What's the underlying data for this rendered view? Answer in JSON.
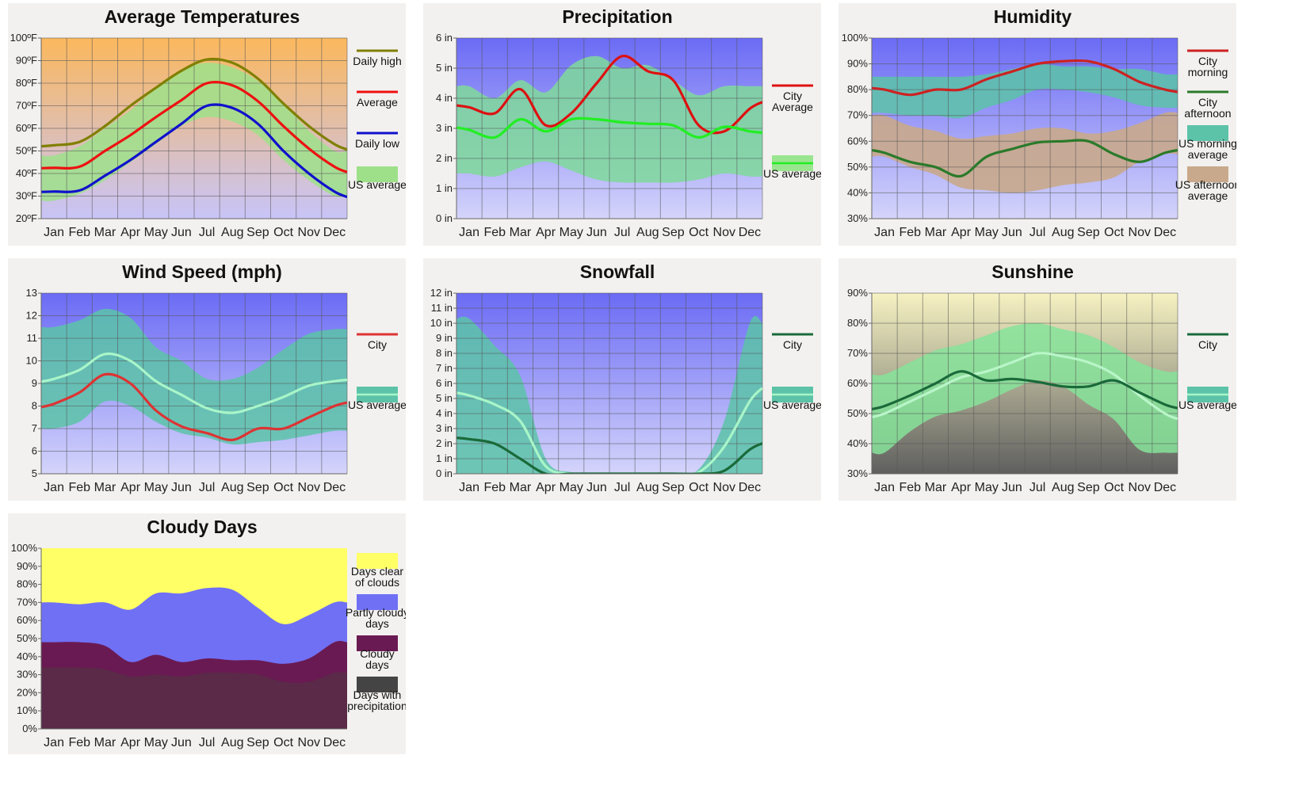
{
  "months": [
    "Jan",
    "Feb",
    "Mar",
    "Apr",
    "May",
    "Jun",
    "Jul",
    "Aug",
    "Sep",
    "Oct",
    "Nov",
    "Dec"
  ],
  "chart_data": [
    {
      "id": "temp",
      "type": "line",
      "title": "Average Temperatures",
      "ylim": [
        20,
        100
      ],
      "yticks": [
        20,
        30,
        40,
        50,
        60,
        70,
        80,
        90,
        100
      ],
      "ytick_labels": [
        "20ºF",
        "30ºF",
        "40ºF",
        "50ºF",
        "60ºF",
        "70ºF",
        "80ºF",
        "90ºF",
        "100ºF"
      ],
      "background": {
        "top": "#fbb85d",
        "bottom": "#c8c4f8"
      },
      "bands": [
        {
          "name": "US average",
          "lower": [
            28,
            31,
            37,
            45,
            53,
            61,
            65,
            63,
            57,
            46,
            37,
            30
          ],
          "upper": [
            48,
            52,
            60,
            68,
            78,
            86,
            89,
            87,
            81,
            71,
            59,
            50
          ],
          "color": "#9ee08a",
          "opacity": 0.85
        }
      ],
      "series": [
        {
          "name": "Daily high",
          "values": [
            52.5,
            54,
            61,
            70,
            78,
            85.5,
            90.5,
            89,
            82,
            71,
            61,
            53
          ],
          "color": "#808000"
        },
        {
          "name": "Average",
          "values": [
            42.5,
            43,
            50,
            57,
            65,
            72.5,
            80,
            79,
            72,
            61,
            51,
            43
          ],
          "color": "#ee1111"
        },
        {
          "name": "Daily low",
          "values": [
            32,
            32.5,
            39,
            46,
            54,
            62,
            70,
            69,
            62,
            50,
            40,
            32
          ],
          "color": "#1111cc"
        }
      ],
      "legend": [
        {
          "type": "line",
          "color": "#808000",
          "label": [
            "Daily high"
          ]
        },
        {
          "type": "line",
          "color": "#ee1111",
          "label": [
            "Average"
          ]
        },
        {
          "type": "line",
          "color": "#1111cc",
          "label": [
            "Daily low"
          ]
        },
        {
          "type": "box",
          "color": "#9ee08a",
          "label": [
            "US average"
          ]
        }
      ]
    },
    {
      "id": "precip",
      "type": "line",
      "title": "Precipitation",
      "ylim": [
        0,
        6
      ],
      "yticks": [
        0,
        1,
        2,
        3,
        4,
        5,
        6
      ],
      "ytick_labels": [
        "0 in",
        "1 in",
        "2 in",
        "3 in",
        "4 in",
        "5 in",
        "6 in"
      ],
      "background": {
        "top": "#6b6bf5",
        "bottom": "#d4d4fb"
      },
      "bands": [
        {
          "name": "US average",
          "lower": [
            1.5,
            1.4,
            1.7,
            1.9,
            1.6,
            1.3,
            1.2,
            1.2,
            1.2,
            1.3,
            1.5,
            1.4
          ],
          "upper": [
            4.4,
            4.0,
            4.6,
            4.2,
            5.1,
            5.4,
            5.0,
            5.1,
            4.6,
            4.1,
            4.4,
            4.4
          ],
          "color": "#7fd99b",
          "opacity": 0.85
        }
      ],
      "series": [
        {
          "name": "City Average",
          "values": [
            3.7,
            3.5,
            4.3,
            3.1,
            3.5,
            4.5,
            5.4,
            4.9,
            4.6,
            3.1,
            2.9,
            3.65
          ],
          "color": "#dd1111"
        },
        {
          "name": "US average",
          "values": [
            2.95,
            2.7,
            3.3,
            2.9,
            3.3,
            3.3,
            3.2,
            3.15,
            3.1,
            2.7,
            3.05,
            2.9
          ],
          "color": "#22ee22"
        }
      ],
      "legend": [
        {
          "type": "line",
          "color": "#dd1111",
          "label": [
            "City",
            "Average"
          ]
        },
        {
          "type": "box-line",
          "color": "#9ae58f",
          "line": "#22ee22",
          "label": [
            "US average"
          ]
        }
      ]
    },
    {
      "id": "humid",
      "type": "line",
      "title": "Humidity",
      "ylim": [
        30,
        100
      ],
      "yticks": [
        30,
        40,
        50,
        60,
        70,
        80,
        90,
        100
      ],
      "ytick_labels": [
        "30%",
        "40%",
        "50%",
        "60%",
        "70%",
        "80%",
        "90%",
        "100%"
      ],
      "background": {
        "top": "#6b6bf5",
        "bottom": "#d4d4fb"
      },
      "bands": [
        {
          "name": "US afternoon average",
          "lower": [
            54,
            50,
            47,
            42,
            41,
            40,
            41,
            43,
            44,
            46,
            52,
            55
          ],
          "upper": [
            70,
            66,
            64,
            61,
            62,
            63,
            65,
            65,
            63,
            64,
            67,
            71
          ],
          "color": "#c9a98b",
          "opacity": 0.9
        },
        {
          "name": "US morning average",
          "lower": [
            71,
            70,
            70,
            69,
            73,
            76,
            80,
            80,
            79,
            77,
            74,
            73
          ],
          "upper": [
            85,
            85,
            85,
            85,
            86,
            88,
            90,
            89,
            89,
            88,
            88,
            86
          ],
          "color": "#5cc3a8",
          "opacity": 0.85
        }
      ],
      "series": [
        {
          "name": "City morning",
          "values": [
            80,
            78,
            80,
            80,
            84,
            87,
            90,
            91,
            91,
            88,
            83,
            80
          ],
          "color": "#cc2222"
        },
        {
          "name": "City afternoon",
          "values": [
            55.5,
            52,
            50,
            46.5,
            54,
            57,
            59.5,
            60,
            60,
            55,
            52,
            55.5
          ],
          "color": "#2a7a2a"
        }
      ],
      "legend": [
        {
          "type": "line",
          "color": "#cc2222",
          "label": [
            "City",
            "morning"
          ]
        },
        {
          "type": "line",
          "color": "#2a7a2a",
          "label": [
            "City",
            "afternoon"
          ]
        },
        {
          "type": "box",
          "color": "#5cc3a8",
          "label": [
            "US morning",
            "average"
          ]
        },
        {
          "type": "box",
          "color": "#c9a98b",
          "label": [
            "US afternoon",
            "average"
          ]
        }
      ]
    },
    {
      "id": "wind",
      "type": "line",
      "title": "Wind Speed (mph)",
      "ylim": [
        5,
        13
      ],
      "yticks": [
        5,
        6,
        7,
        8,
        9,
        10,
        11,
        12,
        13
      ],
      "ytick_labels": [
        "5",
        "6",
        "7",
        "8",
        "9",
        "10",
        "11",
        "12",
        "13"
      ],
      "background": {
        "top": "#6b6bf5",
        "bottom": "#d4d4fb"
      },
      "bands": [
        {
          "name": "US average",
          "lower": [
            7.0,
            7.3,
            8.2,
            8.0,
            7.3,
            6.8,
            6.6,
            6.3,
            6.4,
            6.5,
            6.7,
            6.9
          ],
          "upper": [
            11.5,
            11.8,
            12.3,
            11.9,
            10.6,
            10.0,
            9.2,
            9.2,
            9.7,
            10.5,
            11.2,
            11.4
          ],
          "color": "#5cc3a8",
          "opacity": 0.85
        }
      ],
      "series": [
        {
          "name": "US average",
          "values": [
            9.2,
            9.6,
            10.3,
            10.0,
            9.1,
            8.5,
            7.9,
            7.7,
            8.0,
            8.4,
            8.9,
            9.1
          ],
          "color": "#a8f5c8"
        },
        {
          "name": "City",
          "values": [
            8.1,
            8.6,
            9.4,
            9.0,
            7.8,
            7.1,
            6.8,
            6.5,
            7.0,
            7.0,
            7.5,
            8.0
          ],
          "color": "#dd3333"
        }
      ],
      "legend": [
        {
          "type": "line",
          "color": "#dd3333",
          "label": [
            "City"
          ]
        },
        {
          "type": "box-line",
          "color": "#5cc3a8",
          "line": "#a8f5c8",
          "label": [
            "US average"
          ]
        }
      ]
    },
    {
      "id": "snow",
      "type": "line",
      "title": "Snowfall",
      "ylim": [
        0,
        12
      ],
      "yticks": [
        0,
        1,
        2,
        3,
        4,
        5,
        6,
        7,
        8,
        9,
        10,
        11,
        12
      ],
      "ytick_labels": [
        "0 in",
        "1 in",
        "2 in",
        "3 in",
        "4 in",
        "5 in",
        "6 in",
        "7 in",
        "8 in",
        "9 in",
        "10 in",
        "11 in",
        "12 in"
      ],
      "background": {
        "top": "#6b6bf5",
        "bottom": "#d4d4fb"
      },
      "bands": [
        {
          "name": "US average",
          "lower": [
            0,
            0,
            0,
            0,
            0,
            0,
            0,
            0,
            0,
            0,
            0,
            0
          ],
          "upper": [
            10.3,
            8.5,
            6.5,
            1.0,
            0.1,
            0,
            0,
            0,
            0,
            0.3,
            3.5,
            10.0
          ],
          "color": "#5cc3a8",
          "opacity": 0.85
        }
      ],
      "series": [
        {
          "name": "US average",
          "values": [
            5.2,
            4.6,
            3.5,
            0.5,
            0,
            0,
            0,
            0,
            0,
            0.1,
            1.8,
            4.8
          ],
          "color": "#a8f5c8"
        },
        {
          "name": "City",
          "values": [
            2.3,
            2.0,
            1.0,
            0,
            0,
            0,
            0,
            0,
            0,
            0,
            0.2,
            1.6
          ],
          "color": "#1a6a3a"
        }
      ],
      "legend": [
        {
          "type": "line",
          "color": "#1a6a3a",
          "label": [
            "City"
          ]
        },
        {
          "type": "box-line",
          "color": "#5cc3a8",
          "line": "#a8f5c8",
          "label": [
            "US average"
          ]
        }
      ]
    },
    {
      "id": "sun",
      "type": "line",
      "title": "Sunshine",
      "ylim": [
        30,
        90
      ],
      "yticks": [
        30,
        40,
        50,
        60,
        70,
        80,
        90
      ],
      "ytick_labels": [
        "30%",
        "40%",
        "50%",
        "60%",
        "70%",
        "80%",
        "90%"
      ],
      "background": {
        "top": "#f6f2c2",
        "bottom": "#5f5f5f"
      },
      "bands": [
        {
          "name": "US average",
          "lower": [
            37,
            44,
            49,
            51,
            54,
            58,
            61,
            59,
            53,
            48,
            38,
            37
          ],
          "upper": [
            63,
            67,
            71,
            73,
            76,
            79,
            80,
            78,
            76,
            72,
            67,
            64
          ],
          "color": "#86e39a",
          "opacity": 0.85
        }
      ],
      "series": [
        {
          "name": "US average",
          "values": [
            50,
            54,
            58,
            62,
            64,
            67,
            70,
            69,
            67,
            63,
            56,
            50
          ],
          "color": "#b8f5c8"
        },
        {
          "name": "City",
          "values": [
            52.5,
            56,
            60,
            64,
            61,
            61.5,
            60.5,
            59,
            59,
            61,
            57,
            53
          ],
          "color": "#1a6a3a"
        }
      ],
      "legend": [
        {
          "type": "line",
          "color": "#1a6a3a",
          "label": [
            "City"
          ]
        },
        {
          "type": "box-line",
          "color": "#5cc3a8",
          "line": "#a8f5c8",
          "label": [
            "US average"
          ]
        }
      ]
    },
    {
      "id": "cloudy",
      "type": "area",
      "title": "Cloudy Days",
      "ylim": [
        0,
        100
      ],
      "yticks": [
        0,
        10,
        20,
        30,
        40,
        50,
        60,
        70,
        80,
        90,
        100
      ],
      "ytick_labels": [
        "0%",
        "10%",
        "20%",
        "30%",
        "40%",
        "50%",
        "60%",
        "70%",
        "80%",
        "90%",
        "100%"
      ],
      "series": [
        {
          "name": "Days clear of clouds",
          "values": [
            100,
            100,
            100,
            100,
            100,
            100,
            100,
            100,
            100,
            100,
            100,
            100
          ],
          "color": "#ffff66"
        },
        {
          "name": "Partly cloudy days",
          "values": [
            70,
            69,
            70,
            66,
            75,
            75,
            78,
            77,
            67,
            58,
            63,
            70
          ],
          "color": "#7070f5"
        },
        {
          "name": "Cloudy days",
          "values": [
            48,
            48,
            46,
            37,
            41,
            37,
            39,
            38,
            38,
            36,
            39,
            48
          ],
          "color": "#6a1a52"
        },
        {
          "name": "Days with precipitation",
          "values": [
            34,
            34,
            33,
            29,
            30,
            29,
            31,
            31,
            30,
            26,
            26,
            31
          ],
          "color": "#5a2a48"
        }
      ],
      "legend": [
        {
          "type": "box",
          "color": "#ffff66",
          "label": [
            "Days clear",
            "of clouds"
          ]
        },
        {
          "type": "box",
          "color": "#7070f5",
          "label": [
            "Partly cloudy",
            "days"
          ]
        },
        {
          "type": "box",
          "color": "#6a1a52",
          "label": [
            "Cloudy",
            "days"
          ]
        },
        {
          "type": "box",
          "color": "#444444",
          "label": [
            "Days with",
            "precipitation"
          ]
        }
      ]
    }
  ]
}
